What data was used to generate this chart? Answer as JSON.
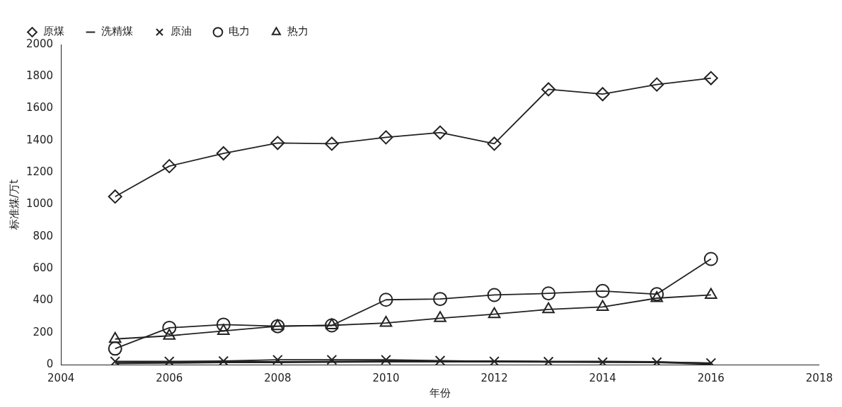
{
  "chart_data": {
    "type": "line",
    "xlabel": "年份",
    "ylabel": "标准煤/万t",
    "x": [
      2005,
      2006,
      2007,
      2008,
      2009,
      2010,
      2011,
      2012,
      2013,
      2014,
      2015,
      2016
    ],
    "series": [
      {
        "name": "原煤",
        "color": "#222222",
        "marker": "diamond",
        "values": [
          1050,
          1240,
          1320,
          1385,
          1380,
          1420,
          1450,
          1380,
          1720,
          1690,
          1750,
          1790
        ]
      },
      {
        "name": "洗精煤",
        "color": "#222222",
        "marker": "none",
        "values": [
          10,
          12,
          15,
          15,
          18,
          20,
          20,
          20,
          18,
          18,
          15,
          5
        ]
      },
      {
        "name": "原油",
        "color": "#222222",
        "marker": "cross",
        "values": [
          20,
          20,
          22,
          30,
          30,
          30,
          25,
          20,
          18,
          15,
          15,
          10
        ]
      },
      {
        "name": "电力",
        "color": "#222222",
        "marker": "circle",
        "values": [
          100,
          230,
          250,
          240,
          245,
          405,
          410,
          435,
          445,
          460,
          440,
          660
        ]
      },
      {
        "name": "热力",
        "color": "#222222",
        "marker": "triangle",
        "values": [
          160,
          180,
          210,
          240,
          245,
          260,
          290,
          315,
          345,
          360,
          415,
          435
        ]
      }
    ],
    "xlim": [
      2004,
      2018
    ],
    "xticks": [
      2004,
      2006,
      2008,
      2010,
      2012,
      2014,
      2016,
      2018
    ],
    "ylim": [
      0,
      2000
    ],
    "yticks": [
      0,
      200,
      400,
      600,
      800,
      1000,
      1200,
      1400,
      1600,
      1800,
      2000
    ],
    "grid": false,
    "legend": "top left",
    "line_style": "solid"
  }
}
